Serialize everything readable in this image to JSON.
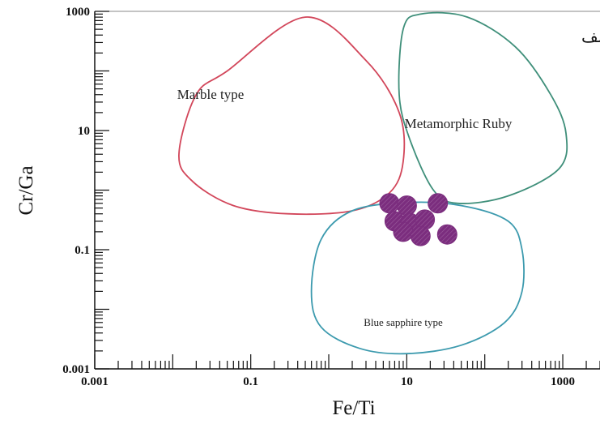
{
  "chart_data": {
    "type": "scatter",
    "title": "",
    "corner_label": "الف",
    "xlabel": "Fe/Ti",
    "ylabel": "Cr/Ga",
    "xscale": "log",
    "yscale": "log",
    "xlim": [
      0.001,
      3000
    ],
    "ylim": [
      0.001,
      1000
    ],
    "grid": false,
    "x_ticks": [
      {
        "value": 0.001,
        "label": "0.001"
      },
      {
        "value": 0.1,
        "label": "0.1"
      },
      {
        "value": 10,
        "label": "10"
      },
      {
        "value": 1000,
        "label": "1000"
      }
    ],
    "y_ticks": [
      {
        "value": 0.001,
        "label": "0.001"
      },
      {
        "value": 0.1,
        "label": "0.1"
      },
      {
        "value": 10,
        "label": "10"
      },
      {
        "value": 1000,
        "label": "1000"
      }
    ],
    "regions": [
      {
        "name": "Marble type",
        "color": "#d2465a",
        "polygon": [
          [
            0.012,
            4
          ],
          [
            0.018,
            1.4
          ],
          [
            0.06,
            0.55
          ],
          [
            0.3,
            0.4
          ],
          [
            2,
            0.45
          ],
          [
            6,
            0.9
          ],
          [
            9,
            3
          ],
          [
            8,
            20
          ],
          [
            3,
            150
          ],
          [
            0.5,
            800
          ],
          [
            0.05,
            100
          ],
          [
            0.02,
            40
          ],
          [
            0.012,
            4
          ]
        ]
      },
      {
        "name": "Metamorphic Ruby",
        "color": "#3f8f7a",
        "polygon": [
          [
            8,
            40
          ],
          [
            9,
            500
          ],
          [
            15,
            900
          ],
          [
            60,
            800
          ],
          [
            250,
            250
          ],
          [
            700,
            40
          ],
          [
            1100,
            9
          ],
          [
            900,
            2.3
          ],
          [
            200,
            0.8
          ],
          [
            45,
            0.6
          ],
          [
            22,
            1
          ],
          [
            11,
            7
          ],
          [
            8,
            40
          ]
        ]
      },
      {
        "name": "Blue sapphire type",
        "color": "#3c9aae",
        "polygon": [
          [
            0.6,
            0.02
          ],
          [
            0.8,
            0.005
          ],
          [
            2.5,
            0.0022
          ],
          [
            10,
            0.0018
          ],
          [
            50,
            0.0025
          ],
          [
            180,
            0.006
          ],
          [
            300,
            0.02
          ],
          [
            300,
            0.1
          ],
          [
            200,
            0.3
          ],
          [
            50,
            0.55
          ],
          [
            10,
            0.62
          ],
          [
            2,
            0.45
          ],
          [
            0.8,
            0.15
          ],
          [
            0.6,
            0.02
          ]
        ]
      }
    ],
    "series": [
      {
        "color": "#7b2d7e",
        "points": [
          [
            6,
            0.6
          ],
          [
            10,
            0.55
          ],
          [
            25,
            0.6
          ],
          [
            7,
            0.3
          ],
          [
            11,
            0.28
          ],
          [
            17,
            0.32
          ],
          [
            9,
            0.2
          ],
          [
            15,
            0.17
          ],
          [
            33,
            0.18
          ]
        ]
      }
    ]
  }
}
